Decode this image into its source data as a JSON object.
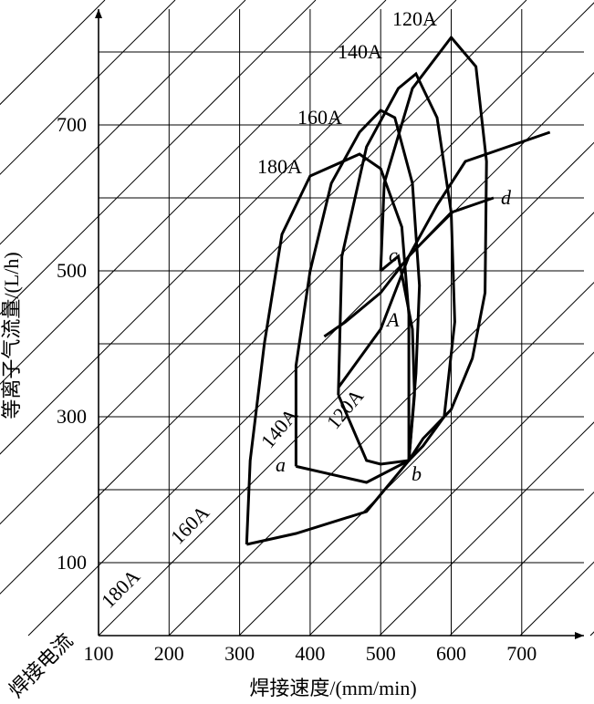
{
  "chart_data": {
    "type": "line",
    "x_label": "焊接速度/(mm/min)",
    "y_label": "等离子气流量/(L/h)",
    "corner_label": "焊接电流",
    "x_ticks": [
      "100",
      "200",
      "300",
      "400",
      "500",
      "600",
      "700"
    ],
    "y_ticks": [
      "100",
      "300",
      "500",
      "700"
    ],
    "current_labels": [
      {
        "text": "120A",
        "placement": "upper-right"
      },
      {
        "text": "140A",
        "placement": "upper"
      },
      {
        "text": "160A",
        "placement": "upper"
      },
      {
        "text": "180A",
        "placement": "upper-left"
      },
      {
        "text": "140A",
        "placement": "inner-rotated"
      },
      {
        "text": "120A",
        "placement": "inner-rotated"
      },
      {
        "text": "160A",
        "placement": "lower-left-rotated"
      },
      {
        "text": "180A",
        "placement": "lower-left-rotated"
      }
    ],
    "points": [
      {
        "name": "a",
        "x": 380,
        "y": 232
      },
      {
        "name": "b",
        "x": 540,
        "y": 240
      },
      {
        "name": "c",
        "x": 540,
        "y": 520
      },
      {
        "name": "d",
        "x": 660,
        "y": 600
      },
      {
        "name": "A",
        "x": 450,
        "y": 430
      }
    ],
    "windows": [
      {
        "current": "120A",
        "outline": [
          [
            500,
            500
          ],
          [
            505,
            620
          ],
          [
            545,
            750
          ],
          [
            600,
            820
          ],
          [
            635,
            780
          ],
          [
            650,
            650
          ],
          [
            648,
            470
          ],
          [
            630,
            380
          ],
          [
            600,
            310
          ],
          [
            560,
            270
          ],
          [
            540,
            240
          ],
          [
            548,
            330
          ],
          [
            545,
            420
          ],
          [
            525,
            520
          ],
          [
            500,
            500
          ]
        ]
      },
      {
        "current": "140A",
        "outline": [
          [
            440,
            330
          ],
          [
            445,
            520
          ],
          [
            480,
            670
          ],
          [
            525,
            750
          ],
          [
            550,
            770
          ],
          [
            580,
            710
          ],
          [
            600,
            580
          ],
          [
            605,
            430
          ],
          [
            590,
            300
          ],
          [
            560,
            260
          ],
          [
            540,
            240
          ],
          [
            500,
            235
          ],
          [
            480,
            240
          ],
          [
            440,
            330
          ]
        ]
      },
      {
        "current": "160A",
        "outline": [
          [
            380,
            232
          ],
          [
            380,
            370
          ],
          [
            400,
            500
          ],
          [
            430,
            620
          ],
          [
            470,
            690
          ],
          [
            500,
            720
          ],
          [
            520,
            710
          ],
          [
            545,
            620
          ],
          [
            555,
            480
          ],
          [
            550,
            360
          ],
          [
            540,
            240
          ],
          [
            480,
            210
          ],
          [
            380,
            232
          ]
        ]
      },
      {
        "current": "180A",
        "outline": [
          [
            310,
            125
          ],
          [
            315,
            240
          ],
          [
            335,
            400
          ],
          [
            360,
            550
          ],
          [
            400,
            630
          ],
          [
            470,
            660
          ],
          [
            500,
            640
          ],
          [
            530,
            560
          ],
          [
            540,
            440
          ],
          [
            540,
            340
          ],
          [
            540,
            240
          ],
          [
            480,
            170
          ],
          [
            380,
            140
          ],
          [
            310,
            125
          ]
        ]
      }
    ],
    "lines": [
      {
        "label": "A",
        "points": [
          [
            420,
            410
          ],
          [
            450,
            430
          ],
          [
            500,
            470
          ],
          [
            540,
            520
          ],
          [
            600,
            580
          ],
          [
            660,
            600
          ]
        ]
      },
      {
        "label": "c-d",
        "points": [
          [
            440,
            340
          ],
          [
            500,
            420
          ],
          [
            540,
            520
          ],
          [
            580,
            590
          ],
          [
            620,
            650
          ],
          [
            740,
            690
          ]
        ]
      }
    ]
  }
}
